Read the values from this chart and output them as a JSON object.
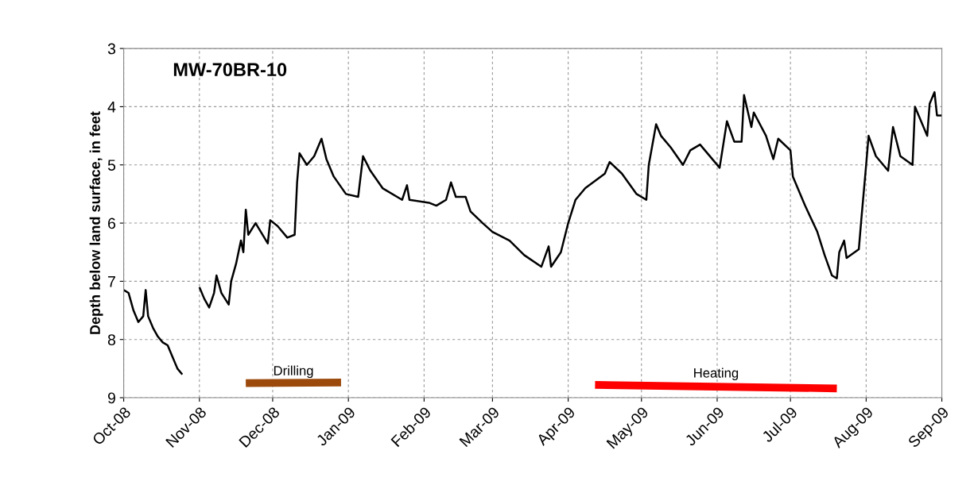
{
  "chart_data": {
    "type": "line",
    "title": "MW-70BR-10",
    "ylabel": "Depth below land surface, in feet",
    "xlim": [
      "2008-10-01",
      "2009-09-01"
    ],
    "xticks": [
      {
        "value": "2008-10-01",
        "label": "Oct-08"
      },
      {
        "value": "2008-11-01",
        "label": "Nov-08"
      },
      {
        "value": "2008-12-01",
        "label": "Dec-08"
      },
      {
        "value": "2009-01-01",
        "label": "Jan-09"
      },
      {
        "value": "2009-02-01",
        "label": "Feb-09"
      },
      {
        "value": "2009-03-01",
        "label": "Mar-09"
      },
      {
        "value": "2009-04-01",
        "label": "Apr-09"
      },
      {
        "value": "2009-05-01",
        "label": "May-09"
      },
      {
        "value": "2009-06-01",
        "label": "Jun-09"
      },
      {
        "value": "2009-07-01",
        "label": "Jul-09"
      },
      {
        "value": "2009-08-01",
        "label": "Aug-09"
      },
      {
        "value": "2009-09-01",
        "label": "Sep-09"
      }
    ],
    "ylim": [
      9,
      3
    ],
    "yticks": [
      3,
      4,
      5,
      6,
      7,
      8,
      9
    ],
    "grid": true,
    "marker": "none",
    "line_style": "solid",
    "series": [
      {
        "color": "#000000",
        "x": [
          "2008-10-01",
          "2008-10-03",
          "2008-10-05",
          "2008-10-07",
          "2008-10-09",
          "2008-10-10",
          "2008-10-11",
          "2008-10-13",
          "2008-10-15",
          "2008-10-17",
          "2008-10-19",
          "2008-10-21",
          "2008-10-23",
          "2008-10-25",
          "2008-10-28",
          "2008-11-01",
          "2008-11-03",
          "2008-11-05",
          "2008-11-07",
          "2008-11-08",
          "2008-11-10",
          "2008-11-13",
          "2008-11-14",
          "2008-11-16",
          "2008-11-18",
          "2008-11-19",
          "2008-11-20",
          "2008-11-21",
          "2008-11-24",
          "2008-11-29",
          "2008-11-30",
          "2008-12-03",
          "2008-12-07",
          "2008-12-10",
          "2008-12-11",
          "2008-12-12",
          "2008-12-15",
          "2008-12-18",
          "2008-12-21",
          "2008-12-23",
          "2008-12-26",
          "2008-12-31",
          "2009-01-05",
          "2009-01-07",
          "2009-01-10",
          "2009-01-15",
          "2009-01-23",
          "2009-01-25",
          "2009-01-26",
          "2009-02-03",
          "2009-02-06",
          "2009-02-10",
          "2009-02-12",
          "2009-02-14",
          "2009-02-18",
          "2009-02-20",
          "2009-02-25",
          "2009-03-01",
          "2009-03-08",
          "2009-03-14",
          "2009-03-21",
          "2009-03-24",
          "2009-03-25",
          "2009-03-29",
          "2009-04-01",
          "2009-04-04",
          "2009-04-08",
          "2009-04-16",
          "2009-04-18",
          "2009-04-23",
          "2009-04-29",
          "2009-05-03",
          "2009-05-04",
          "2009-05-07",
          "2009-05-09",
          "2009-05-13",
          "2009-05-18",
          "2009-05-21",
          "2009-05-25",
          "2009-05-30",
          "2009-06-02",
          "2009-06-05",
          "2009-06-08",
          "2009-06-11",
          "2009-06-12",
          "2009-06-15",
          "2009-06-16",
          "2009-06-21",
          "2009-06-24",
          "2009-06-26",
          "2009-07-01",
          "2009-07-02",
          "2009-07-07",
          "2009-07-12",
          "2009-07-15",
          "2009-07-18",
          "2009-07-20",
          "2009-07-21",
          "2009-07-23",
          "2009-07-24",
          "2009-07-29",
          "2009-07-30",
          "2009-08-01",
          "2009-08-02",
          "2009-08-05",
          "2009-08-10",
          "2009-08-12",
          "2009-08-15",
          "2009-08-20",
          "2009-08-21",
          "2009-08-25",
          "2009-08-26",
          "2009-08-27",
          "2009-08-29",
          "2009-08-30",
          "2009-09-01"
        ],
        "values": [
          7.15,
          7.2,
          7.5,
          7.7,
          7.6,
          7.15,
          7.6,
          7.8,
          7.95,
          8.05,
          8.1,
          8.3,
          8.5,
          8.6,
          null,
          7.1,
          7.3,
          7.45,
          7.2,
          6.9,
          7.2,
          7.4,
          7.0,
          6.7,
          6.3,
          6.5,
          5.77,
          6.2,
          6.0,
          6.35,
          5.95,
          6.05,
          6.25,
          6.2,
          5.3,
          4.8,
          5.0,
          4.85,
          4.55,
          4.9,
          5.2,
          5.5,
          5.55,
          4.85,
          5.1,
          5.4,
          5.6,
          5.35,
          5.6,
          5.65,
          5.7,
          5.6,
          5.3,
          5.55,
          5.55,
          5.8,
          6.0,
          6.15,
          6.3,
          6.55,
          6.75,
          6.4,
          6.75,
          6.5,
          6.0,
          5.6,
          5.4,
          5.15,
          4.95,
          5.15,
          5.5,
          5.6,
          5.0,
          4.3,
          4.5,
          4.7,
          5.0,
          4.75,
          4.65,
          4.9,
          5.05,
          4.25,
          4.6,
          4.6,
          3.8,
          4.35,
          4.1,
          4.5,
          4.9,
          4.55,
          4.75,
          5.2,
          5.7,
          6.15,
          6.55,
          6.9,
          6.95,
          6.5,
          6.3,
          6.6,
          6.45,
          5.95,
          5.0,
          4.5,
          4.85,
          5.1,
          4.35,
          4.85,
          5.0,
          4.0,
          4.4,
          4.5,
          3.95,
          3.75,
          4.15,
          4.15
        ]
      },
      {
        "name": "Drilling",
        "color": "#9c4a0c",
        "x": [
          "2008-11-20",
          "2008-12-29"
        ],
        "values": [
          8.75,
          8.74
        ]
      },
      {
        "name": "Heating",
        "color": "#ff0000",
        "x": [
          "2009-04-12",
          "2009-07-20"
        ],
        "values": [
          8.78,
          8.84
        ]
      }
    ]
  }
}
